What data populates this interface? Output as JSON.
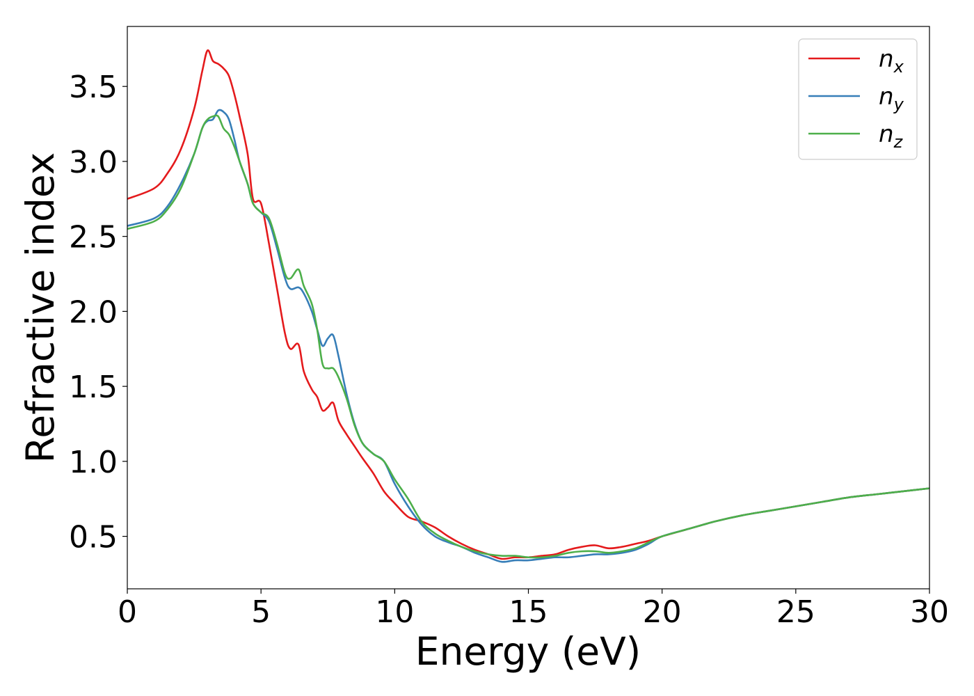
{
  "chart_data": {
    "type": "line",
    "title": "",
    "xlabel": "Energy (eV)",
    "ylabel": "Refractive index",
    "xlim": [
      0,
      30
    ],
    "ylim": [
      0.15,
      3.9
    ],
    "x_ticks": [
      0,
      5,
      10,
      15,
      20,
      25,
      30
    ],
    "x_tick_labels": [
      "0",
      "5",
      "10",
      "15",
      "20",
      "25",
      "30"
    ],
    "y_ticks": [
      0.5,
      1.0,
      1.5,
      2.0,
      2.5,
      3.0,
      3.5
    ],
    "y_tick_labels": [
      "0.5",
      "1.0",
      "1.5",
      "2.0",
      "2.5",
      "3.0",
      "3.5"
    ],
    "grid": false,
    "legend_position": "top-right",
    "series": [
      {
        "name": "n_x",
        "label_base": "n",
        "label_sub": "x",
        "color": "#e41a1c",
        "x": [
          0,
          1,
          1.5,
          2,
          2.5,
          2.8,
          3.0,
          3.2,
          3.4,
          3.6,
          3.8,
          4.0,
          4.2,
          4.5,
          4.7,
          5.0,
          5.3,
          5.6,
          5.9,
          6.1,
          6.4,
          6.6,
          6.9,
          7.1,
          7.3,
          7.5,
          7.7,
          7.9,
          8.2,
          8.5,
          8.8,
          9.2,
          9.6,
          10.0,
          10.5,
          11.0,
          11.5,
          12.0,
          12.5,
          13.0,
          13.5,
          14.0,
          14.5,
          15.0,
          15.5,
          16.0,
          16.5,
          17.0,
          17.5,
          18.0,
          18.5,
          19.0,
          19.5,
          20.0,
          21.0,
          22.0,
          23.0,
          24.0,
          25.0,
          26.0,
          27.0,
          28.0,
          29.0,
          30.0
        ],
        "y": [
          2.75,
          2.82,
          2.92,
          3.08,
          3.35,
          3.6,
          3.74,
          3.67,
          3.65,
          3.62,
          3.57,
          3.45,
          3.3,
          3.05,
          2.75,
          2.72,
          2.45,
          2.15,
          1.85,
          1.75,
          1.78,
          1.6,
          1.48,
          1.43,
          1.34,
          1.36,
          1.39,
          1.27,
          1.18,
          1.1,
          1.02,
          0.92,
          0.8,
          0.72,
          0.63,
          0.6,
          0.56,
          0.5,
          0.45,
          0.41,
          0.38,
          0.35,
          0.36,
          0.36,
          0.37,
          0.38,
          0.41,
          0.43,
          0.44,
          0.42,
          0.43,
          0.45,
          0.47,
          0.5,
          0.55,
          0.6,
          0.64,
          0.67,
          0.7,
          0.73,
          0.76,
          0.78,
          0.8,
          0.82
        ]
      },
      {
        "name": "n_y",
        "label_base": "n",
        "label_sub": "y",
        "color": "#377eb8",
        "x": [
          0,
          1,
          1.5,
          2,
          2.5,
          2.8,
          3.0,
          3.2,
          3.4,
          3.6,
          3.8,
          4.0,
          4.2,
          4.5,
          4.7,
          5.0,
          5.3,
          5.6,
          5.9,
          6.1,
          6.4,
          6.6,
          6.9,
          7.1,
          7.3,
          7.5,
          7.7,
          7.9,
          8.2,
          8.5,
          8.8,
          9.2,
          9.6,
          10.0,
          10.5,
          11.0,
          11.5,
          12.0,
          12.5,
          13.0,
          13.5,
          14.0,
          14.5,
          15.0,
          15.5,
          16.0,
          16.5,
          17.0,
          17.5,
          18.0,
          18.5,
          19.0,
          19.5,
          20.0,
          21.0,
          22.0,
          23.0,
          24.0,
          25.0,
          26.0,
          27.0,
          28.0,
          29.0,
          30.0
        ],
        "y": [
          2.57,
          2.62,
          2.7,
          2.85,
          3.05,
          3.22,
          3.27,
          3.28,
          3.34,
          3.33,
          3.28,
          3.15,
          3.0,
          2.85,
          2.72,
          2.66,
          2.6,
          2.42,
          2.22,
          2.15,
          2.16,
          2.12,
          2.0,
          1.88,
          1.77,
          1.82,
          1.84,
          1.7,
          1.45,
          1.25,
          1.12,
          1.05,
          1.0,
          0.85,
          0.7,
          0.58,
          0.5,
          0.46,
          0.43,
          0.39,
          0.36,
          0.33,
          0.34,
          0.34,
          0.35,
          0.36,
          0.36,
          0.37,
          0.38,
          0.38,
          0.39,
          0.41,
          0.45,
          0.5,
          0.55,
          0.6,
          0.64,
          0.67,
          0.7,
          0.73,
          0.76,
          0.78,
          0.8,
          0.82
        ]
      },
      {
        "name": "n_z",
        "label_base": "n",
        "label_sub": "z",
        "color": "#4daf4a",
        "x": [
          0,
          1,
          1.5,
          2,
          2.5,
          2.8,
          3.0,
          3.2,
          3.4,
          3.6,
          3.8,
          4.0,
          4.2,
          4.5,
          4.7,
          5.0,
          5.3,
          5.6,
          5.9,
          6.1,
          6.4,
          6.6,
          6.9,
          7.1,
          7.3,
          7.5,
          7.7,
          7.9,
          8.2,
          8.5,
          8.8,
          9.2,
          9.6,
          10.0,
          10.5,
          11.0,
          11.5,
          12.0,
          12.5,
          13.0,
          13.5,
          14.0,
          14.5,
          15.0,
          15.5,
          16.0,
          16.5,
          17.0,
          17.5,
          18.0,
          18.5,
          19.0,
          19.5,
          20.0,
          21.0,
          22.0,
          23.0,
          24.0,
          25.0,
          26.0,
          27.0,
          28.0,
          29.0,
          30.0
        ],
        "y": [
          2.55,
          2.6,
          2.68,
          2.82,
          3.05,
          3.22,
          3.28,
          3.3,
          3.3,
          3.22,
          3.18,
          3.1,
          3.0,
          2.85,
          2.72,
          2.66,
          2.62,
          2.45,
          2.25,
          2.22,
          2.28,
          2.17,
          2.05,
          1.88,
          1.65,
          1.62,
          1.62,
          1.56,
          1.42,
          1.24,
          1.12,
          1.05,
          1.0,
          0.88,
          0.75,
          0.6,
          0.52,
          0.47,
          0.43,
          0.4,
          0.38,
          0.37,
          0.37,
          0.36,
          0.36,
          0.37,
          0.39,
          0.4,
          0.4,
          0.39,
          0.4,
          0.42,
          0.46,
          0.5,
          0.55,
          0.6,
          0.64,
          0.67,
          0.7,
          0.73,
          0.76,
          0.78,
          0.8,
          0.82
        ]
      }
    ]
  }
}
